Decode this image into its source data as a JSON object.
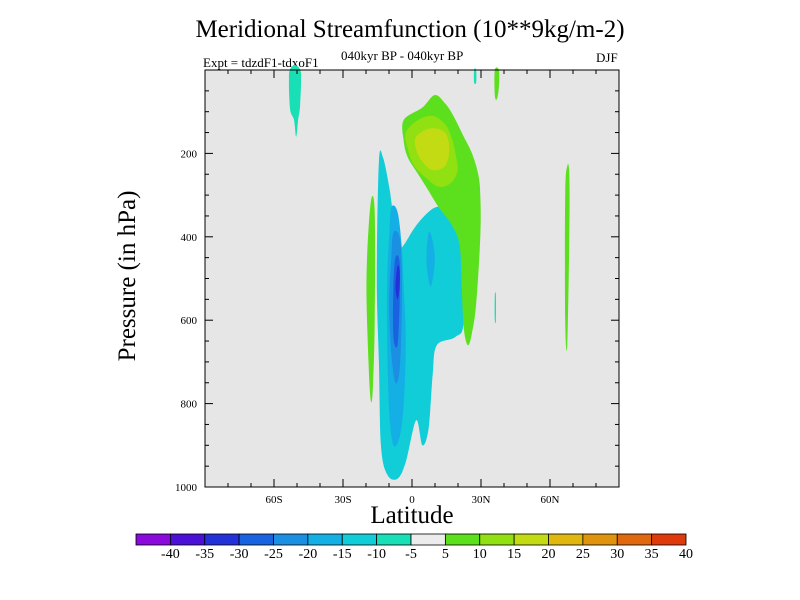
{
  "chart_data": {
    "type": "contour",
    "title": "Meridional Streamfunction (10**9kg/m-2)",
    "subtitle": "040kyr BP - 040kyr BP",
    "experiment": "Expt = tdzdF1-tdxoF1",
    "season": "DJF",
    "xlabel": "Latitude",
    "ylabel": "Pressure (in hPa)",
    "xlim": [
      -90,
      90
    ],
    "ylim": [
      0,
      1000
    ],
    "y_inverted": true,
    "x_ticks": [
      -60,
      -30,
      0,
      30,
      60
    ],
    "x_tick_labels": [
      "60S",
      "30S",
      "0",
      "30N",
      "60N"
    ],
    "y_ticks": [
      200,
      400,
      600,
      800,
      1000
    ],
    "y_tick_labels": [
      "200",
      "400",
      "600",
      "800",
      "1000"
    ],
    "background_color": "#e6e6e6",
    "colorbar": {
      "labels": [
        "-40",
        "-35",
        "-30",
        "-25",
        "-20",
        "-15",
        "-10",
        "-5",
        "5",
        "10",
        "15",
        "20",
        "25",
        "30",
        "35",
        "40"
      ],
      "colors": [
        "#8a0bdc",
        "#4b11d6",
        "#2331d9",
        "#1a63e0",
        "#1b8fe2",
        "#14b0e5",
        "#10cdd7",
        "#18dfb6",
        "#ececec",
        "#5ce01e",
        "#91e011",
        "#c3db12",
        "#e0b70e",
        "#e0940e",
        "#e0680e",
        "#df3a0c"
      ]
    },
    "regions": [
      {
        "level": "-10",
        "color": "#10cdd7",
        "points": [
          [
            -14.4,
            220
          ],
          [
            -12.6,
            210
          ],
          [
            -9.9,
            280
          ],
          [
            -8.1,
            350
          ],
          [
            -5.4,
            420
          ],
          [
            -3.6,
            420
          ],
          [
            0.9,
            380
          ],
          [
            5.4,
            350
          ],
          [
            9.9,
            330
          ],
          [
            14.4,
            330
          ],
          [
            20.7,
            350
          ],
          [
            22.5,
            390
          ],
          [
            22.5,
            600
          ],
          [
            18.9,
            640
          ],
          [
            10.8,
            660
          ],
          [
            9.0,
            730
          ],
          [
            7.2,
            860
          ],
          [
            4.5,
            900
          ],
          [
            1.8,
            840
          ],
          [
            -2.7,
            940
          ],
          [
            -6.3,
            980
          ],
          [
            -10.8,
            970
          ],
          [
            -13.5,
            900
          ],
          [
            -14.4,
            700
          ],
          [
            -15.3,
            500
          ]
        ]
      },
      {
        "level": "-15",
        "color": "#14b0e5",
        "points": [
          [
            -9.0,
            330
          ],
          [
            -6.3,
            340
          ],
          [
            -4.5,
            420
          ],
          [
            -3.6,
            520
          ],
          [
            -2.7,
            650
          ],
          [
            -3.6,
            800
          ],
          [
            -5.4,
            880
          ],
          [
            -8.1,
            900
          ],
          [
            -9.9,
            820
          ],
          [
            -10.8,
            650
          ],
          [
            -10.8,
            500
          ],
          [
            -9.9,
            400
          ]
        ]
      },
      {
        "level": "-15",
        "color": "#14b0e5",
        "points": [
          [
            7.2,
            390
          ],
          [
            9.0,
            410
          ],
          [
            9.9,
            460
          ],
          [
            8.1,
            520
          ],
          [
            6.3,
            460
          ]
        ]
      },
      {
        "level": "-20",
        "color": "#1b8fe2",
        "points": [
          [
            -8.1,
            390
          ],
          [
            -5.4,
            400
          ],
          [
            -4.5,
            470
          ],
          [
            -4.5,
            600
          ],
          [
            -5.4,
            720
          ],
          [
            -7.2,
            750
          ],
          [
            -9.0,
            680
          ],
          [
            -9.9,
            560
          ],
          [
            -9.0,
            450
          ]
        ]
      },
      {
        "level": "-25",
        "color": "#1a63e0",
        "points": [
          [
            -7.2,
            450
          ],
          [
            -5.4,
            460
          ],
          [
            -5.4,
            560
          ],
          [
            -6.3,
            660
          ],
          [
            -8.1,
            640
          ],
          [
            -8.1,
            520
          ]
        ]
      },
      {
        "level": "-30",
        "color": "#2331d9",
        "points": [
          [
            -6.3,
            470
          ],
          [
            -5.4,
            480
          ],
          [
            -5.4,
            520
          ],
          [
            -6.3,
            550
          ],
          [
            -7.2,
            520
          ]
        ]
      },
      {
        "level": "5",
        "color": "#5ce01e",
        "points": [
          [
            -3.6,
            120
          ],
          [
            4.5,
            90
          ],
          [
            9.9,
            60
          ],
          [
            14.4,
            80
          ],
          [
            18.0,
            110
          ],
          [
            22.5,
            160
          ],
          [
            26.1,
            200
          ],
          [
            28.8,
            250
          ],
          [
            29.7,
            300
          ],
          [
            29.7,
            400
          ],
          [
            27.9,
            560
          ],
          [
            26.1,
            630
          ],
          [
            24.3,
            660
          ],
          [
            22.5,
            620
          ],
          [
            21.6,
            520
          ],
          [
            20.7,
            420
          ],
          [
            17.1,
            370
          ],
          [
            11.7,
            330
          ],
          [
            7.2,
            290
          ],
          [
            2.7,
            250
          ],
          [
            -1.8,
            210
          ],
          [
            -3.6,
            170
          ]
        ]
      },
      {
        "level": "10",
        "color": "#91e011",
        "points": [
          [
            -2.7,
            150
          ],
          [
            2.7,
            120
          ],
          [
            9.0,
            110
          ],
          [
            14.4,
            130
          ],
          [
            17.1,
            160
          ],
          [
            18.9,
            200
          ],
          [
            19.8,
            240
          ],
          [
            17.1,
            270
          ],
          [
            11.7,
            280
          ],
          [
            6.3,
            260
          ],
          [
            0.9,
            230
          ],
          [
            -1.8,
            190
          ]
        ]
      },
      {
        "level": "15",
        "color": "#c3db12",
        "points": [
          [
            1.8,
            160
          ],
          [
            8.1,
            140
          ],
          [
            14.4,
            150
          ],
          [
            16.2,
            190
          ],
          [
            14.4,
            230
          ],
          [
            9.0,
            240
          ],
          [
            4.5,
            220
          ],
          [
            1.8,
            190
          ]
        ]
      },
      {
        "level": "5",
        "color": "#5ce01e",
        "points": [
          [
            -18.0,
            320
          ],
          [
            -16.2,
            340
          ],
          [
            -16.2,
            600
          ],
          [
            -17.1,
            770
          ],
          [
            -18.0,
            790
          ],
          [
            -18.9,
            700
          ],
          [
            -19.8,
            500
          ]
        ]
      },
      {
        "level": "5",
        "color": "#5ce01e",
        "points": [
          [
            -53.1,
            0
          ],
          [
            -48.6,
            0
          ],
          [
            -48.6,
            40
          ],
          [
            -49.5,
            90
          ],
          [
            -50.4,
            80
          ],
          [
            -51.3,
            60
          ],
          [
            -53.1,
            40
          ]
        ]
      },
      {
        "level": "-5",
        "color": "#18dfb6",
        "points": [
          [
            -53.1,
            0
          ],
          [
            -48.6,
            0
          ],
          [
            -48.6,
            80
          ],
          [
            -49.5,
            120
          ],
          [
            -50.4,
            160
          ],
          [
            -51.3,
            120
          ],
          [
            -53.1,
            90
          ]
        ]
      },
      {
        "level": "5",
        "color": "#5ce01e",
        "points": [
          [
            36.0,
            0
          ],
          [
            37.8,
            0
          ],
          [
            37.8,
            40
          ],
          [
            36.9,
            70
          ],
          [
            36.0,
            60
          ]
        ]
      },
      {
        "level": "5",
        "color": "#5ce01e",
        "points": [
          [
            67.5,
            230
          ],
          [
            68.4,
            250
          ],
          [
            68.4,
            400
          ],
          [
            67.5,
            660
          ],
          [
            66.6,
            600
          ],
          [
            66.6,
            300
          ]
        ]
      },
      {
        "level": "-5",
        "color": "#18dfb6",
        "points": [
          [
            27.0,
            0
          ],
          [
            27.9,
            0
          ],
          [
            27.9,
            30
          ],
          [
            27.0,
            30
          ]
        ]
      },
      {
        "level": "-5",
        "color": "#18dfb6",
        "points": [
          [
            36.0,
            540
          ],
          [
            36.5,
            540
          ],
          [
            36.5,
            600
          ],
          [
            36.0,
            600
          ]
        ]
      }
    ]
  }
}
